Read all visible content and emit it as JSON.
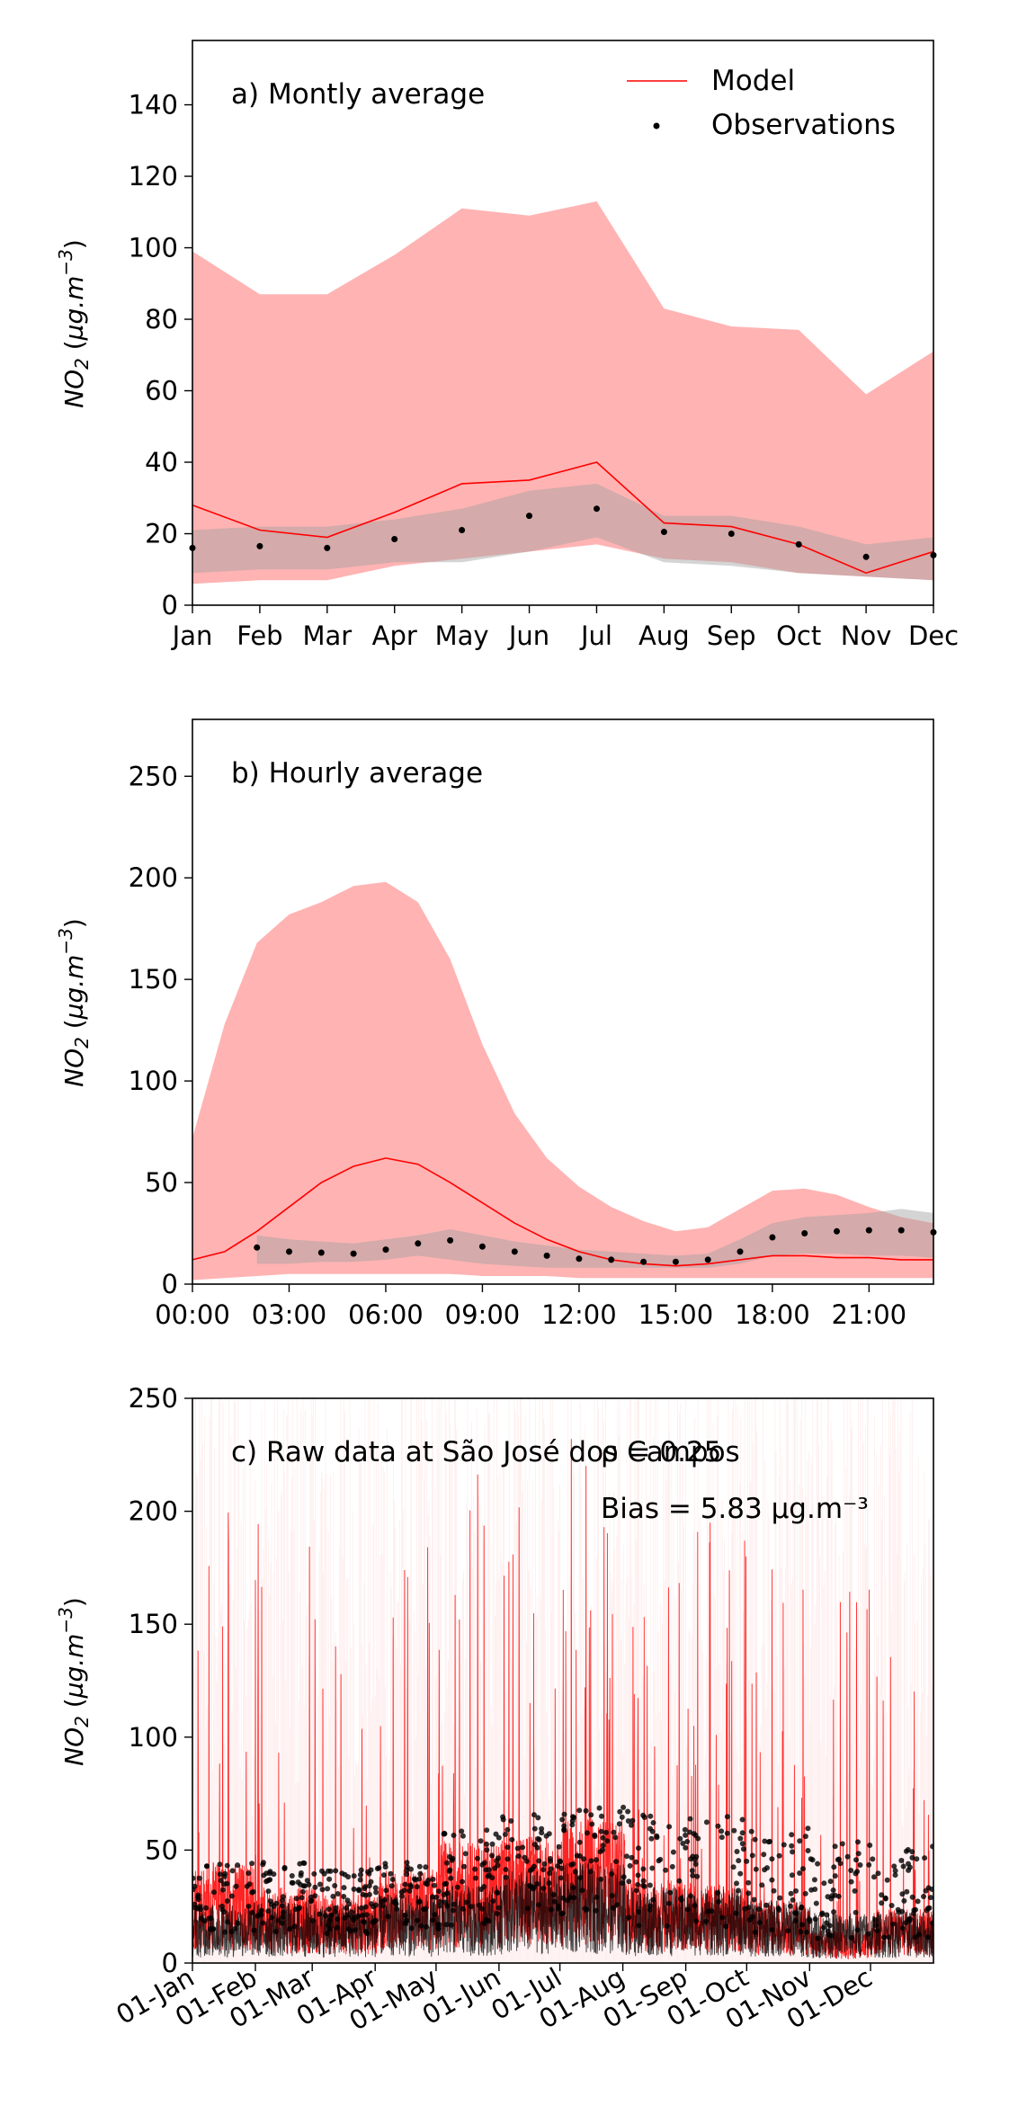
{
  "chart_data": [
    {
      "id": "a",
      "type": "line",
      "panel_label": "a) Montly average",
      "ylabel": "NO2 (µg.m⁻³)",
      "ylim": [
        0,
        158
      ],
      "yticks": [
        0,
        20,
        40,
        60,
        80,
        100,
        120,
        140
      ],
      "xlim": [
        0,
        11
      ],
      "xtick_positions": [
        0,
        1,
        2,
        3,
        4,
        5,
        6,
        7,
        8,
        9,
        10,
        11
      ],
      "xtick_labels": [
        "Jan",
        "Feb",
        "Mar",
        "Apr",
        "May",
        "Jun",
        "Jul",
        "Aug",
        "Sep",
        "Oct",
        "Nov",
        "Dec"
      ],
      "legend": {
        "position": "top-right",
        "model_label": "Model",
        "obs_label": "Observations"
      },
      "colors": {
        "model_line": "#ff0000",
        "model_band": "#ffb3b3",
        "obs_band": "#a0a0a0",
        "obs_points": "#000000"
      },
      "series": [
        {
          "name": "Model",
          "kind": "line",
          "x": [
            0,
            1,
            2,
            3,
            4,
            5,
            6,
            7,
            8,
            9,
            10,
            11
          ],
          "values": [
            28,
            21,
            19,
            26,
            34,
            35,
            40,
            23,
            22,
            17,
            9,
            15
          ]
        },
        {
          "name": "Observations",
          "kind": "points",
          "x": [
            0,
            1,
            2,
            3,
            4,
            5,
            6,
            7,
            8,
            9,
            10,
            11
          ],
          "values": [
            16,
            16.5,
            16,
            18.5,
            21,
            25,
            27,
            20.5,
            20,
            17,
            13.5,
            14
          ]
        }
      ],
      "bands": [
        {
          "kind": "model",
          "x": [
            0,
            1,
            2,
            3,
            4,
            5,
            6,
            7,
            8,
            9,
            10,
            11
          ],
          "lower": [
            6,
            7,
            7,
            11,
            13,
            15,
            17,
            13,
            12,
            9,
            8,
            7
          ],
          "upper": [
            99,
            87,
            87,
            98,
            111,
            109,
            113,
            83,
            78,
            77,
            59,
            71
          ]
        },
        {
          "kind": "obs",
          "x": [
            0,
            1,
            2,
            3,
            4,
            5,
            6,
            7,
            8,
            9,
            10,
            11
          ],
          "lower": [
            9,
            10,
            10,
            12,
            12,
            15,
            19,
            12,
            11,
            9,
            8,
            7
          ],
          "upper": [
            21,
            22,
            22,
            24,
            27,
            32,
            34,
            25,
            25,
            22,
            17,
            19
          ]
        }
      ]
    },
    {
      "id": "b",
      "type": "line",
      "panel_label": "b) Hourly average",
      "ylabel": "NO2 (µg.m⁻³)",
      "ylim": [
        0,
        278
      ],
      "yticks": [
        0,
        50,
        100,
        150,
        200,
        250
      ],
      "xlim": [
        0,
        23
      ],
      "xtick_positions": [
        0,
        3,
        6,
        9,
        12,
        15,
        18,
        21
      ],
      "xtick_labels": [
        "00:00",
        "03:00",
        "06:00",
        "09:00",
        "12:00",
        "15:00",
        "18:00",
        "21:00"
      ],
      "colors": {
        "model_line": "#ff0000",
        "model_band": "#ffb3b3",
        "obs_band": "#a0a0a0",
        "obs_points": "#000000"
      },
      "series": [
        {
          "name": "Model",
          "kind": "line",
          "x": [
            0,
            1,
            2,
            3,
            4,
            5,
            6,
            7,
            8,
            9,
            10,
            11,
            12,
            13,
            14,
            15,
            16,
            17,
            18,
            19,
            20,
            21,
            22,
            23
          ],
          "values": [
            12,
            16,
            26,
            38,
            50,
            58,
            62,
            59,
            50,
            40,
            30,
            22,
            16,
            12,
            10,
            9,
            10,
            12,
            14,
            14,
            13,
            13,
            12,
            12
          ]
        },
        {
          "name": "Observations",
          "kind": "points",
          "x": [
            2,
            3,
            4,
            5,
            6,
            7,
            8,
            9,
            10,
            11,
            12,
            13,
            14,
            15,
            16,
            17,
            18,
            19,
            20,
            21,
            22,
            23
          ],
          "values": [
            18,
            16,
            15.5,
            15,
            17,
            20,
            21.5,
            18.5,
            16,
            14,
            12.5,
            12,
            11,
            11,
            12,
            16,
            23,
            25,
            26,
            26.5,
            26.5,
            25.5
          ]
        }
      ],
      "bands": [
        {
          "kind": "model",
          "x": [
            0,
            1,
            2,
            3,
            4,
            5,
            6,
            7,
            8,
            9,
            10,
            11,
            12,
            13,
            14,
            15,
            16,
            17,
            18,
            19,
            20,
            21,
            22,
            23
          ],
          "lower": [
            2,
            3,
            4,
            5,
            5,
            5,
            5,
            5,
            5,
            4,
            4,
            4,
            3,
            3,
            3,
            3,
            3,
            3,
            3,
            3,
            3,
            3,
            3,
            3
          ],
          "upper": [
            72,
            128,
            168,
            182,
            188,
            196,
            198,
            188,
            160,
            118,
            84,
            62,
            48,
            38,
            31,
            26,
            28,
            37,
            46,
            47,
            44,
            38,
            33,
            30
          ]
        },
        {
          "kind": "obs",
          "x": [
            2,
            3,
            4,
            5,
            6,
            7,
            8,
            9,
            10,
            11,
            12,
            13,
            14,
            15,
            16,
            17,
            18,
            19,
            20,
            21,
            22,
            23
          ],
          "lower": [
            10,
            10,
            11,
            11,
            12,
            14,
            12,
            10,
            9,
            8,
            8,
            8,
            8,
            8,
            8,
            10,
            14,
            15,
            15,
            14,
            14,
            13
          ],
          "upper": [
            24,
            22,
            21,
            20,
            22,
            24,
            27,
            24,
            21,
            19,
            17,
            16,
            15,
            14,
            15,
            22,
            30,
            33,
            34,
            35,
            37,
            35
          ]
        }
      ]
    },
    {
      "id": "c",
      "type": "line",
      "panel_label": "c) Raw data at São José dos Campos",
      "stats": {
        "r_text": "ρ = 0.25",
        "bias_text": "Bias = 5.83 μg.m⁻³"
      },
      "ylabel": "NO2 (µg.m⁻³)",
      "ylim": [
        0,
        250
      ],
      "yticks": [
        0,
        50,
        100,
        150,
        200,
        250
      ],
      "xlim": [
        0,
        365
      ],
      "xtick_positions": [
        0,
        31,
        59,
        90,
        120,
        151,
        181,
        212,
        243,
        273,
        304,
        334
      ],
      "xtick_labels": [
        "01-Jan",
        "01-Feb",
        "01-Mar",
        "01-Apr",
        "01-May",
        "01-Jun",
        "01-Jul",
        "01-Aug",
        "01-Sep",
        "01-Oct",
        "01-Nov",
        "01-Dec"
      ],
      "colors": {
        "model_line": "#ff0000",
        "model_band": "#ffcccc",
        "obs_line": "#000000",
        "obs_points": "#000000"
      },
      "series": [
        {
          "name": "Model",
          "kind": "raw-line",
          "monthly_mean": [
            28,
            21,
            19,
            26,
            34,
            35,
            40,
            23,
            22,
            17,
            9,
            15
          ],
          "monthly_peak": [
            210,
            205,
            180,
            190,
            230,
            235,
            240,
            190,
            195,
            185,
            170,
            180
          ]
        },
        {
          "name": "Observations",
          "kind": "raw-points",
          "monthly_mean": [
            16,
            16.5,
            16,
            18.5,
            21,
            25,
            27,
            20.5,
            20,
            17,
            13.5,
            14
          ],
          "monthly_peak": [
            45,
            45,
            42,
            45,
            60,
            66,
            70,
            68,
            66,
            60,
            55,
            52
          ]
        }
      ]
    }
  ]
}
